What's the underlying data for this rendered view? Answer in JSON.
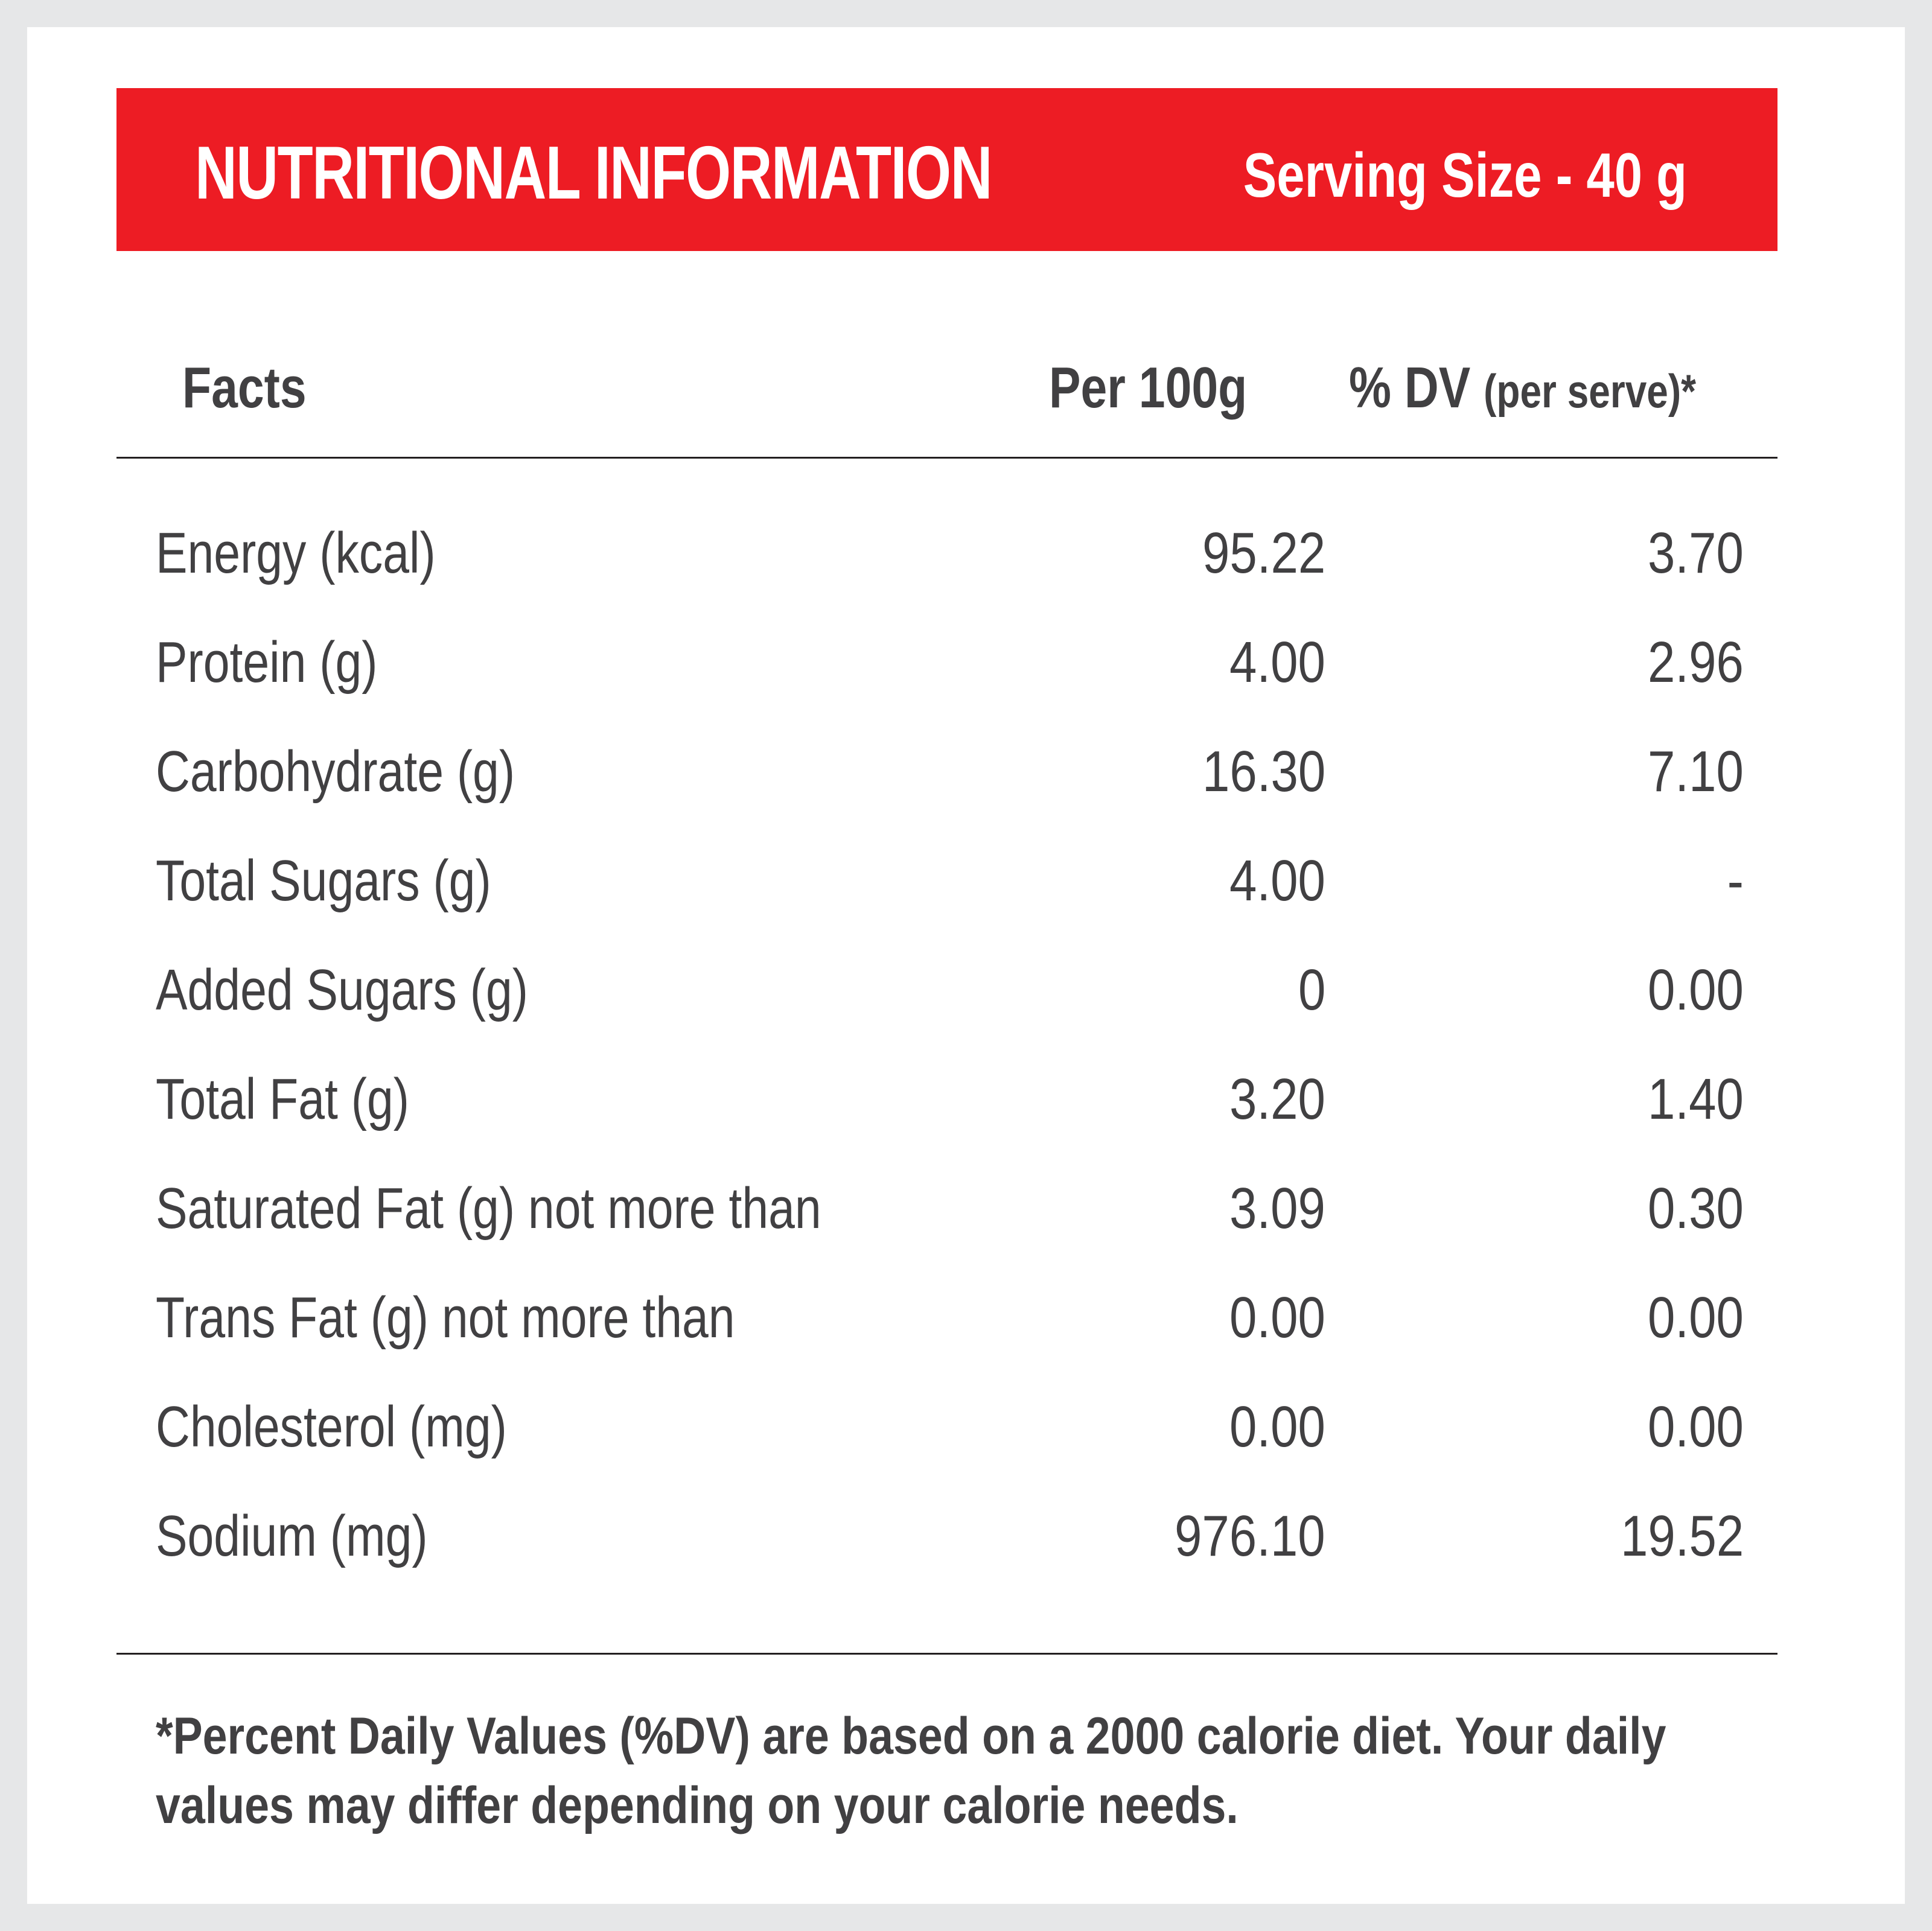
{
  "banner": {
    "title": "NUTRITIONAL INFORMATION",
    "serving": "Serving Size - 40 g"
  },
  "table": {
    "headers": {
      "facts": "Facts",
      "per100": "Per 100g",
      "dv": "% DV",
      "dv_sub": "(per serve)*"
    },
    "rows": [
      {
        "label": "Energy (kcal)",
        "per100": "95.22",
        "dv": "3.70"
      },
      {
        "label": "Protein (g)",
        "per100": "4.00",
        "dv": "2.96"
      },
      {
        "label": "Carbohydrate (g)",
        "per100": "16.30",
        "dv": "7.10"
      },
      {
        "label": "Total Sugars (g)",
        "per100": "4.00",
        "dv": "-"
      },
      {
        "label": "Added Sugars (g)",
        "per100": "0",
        "dv": "0.00"
      },
      {
        "label": "Total Fat (g)",
        "per100": "3.20",
        "dv": "1.40"
      },
      {
        "label": "Saturated Fat (g) not more than",
        "per100": "3.09",
        "dv": "0.30"
      },
      {
        "label": "Trans Fat (g) not more than",
        "per100": "0.00",
        "dv": "0.00"
      },
      {
        "label": "Cholesterol (mg)",
        "per100": "0.00",
        "dv": "0.00"
      },
      {
        "label": "Sodium (mg)",
        "per100": "976.10",
        "dv": "19.52"
      }
    ]
  },
  "footnote": "*Percent Daily Values (%DV) are based on a 2000 calorie diet. Your daily values may differ depending on your calorie needs.",
  "colors": {
    "banner": "#ed1c24",
    "text": "#414042",
    "background": "#e6e7e8"
  }
}
